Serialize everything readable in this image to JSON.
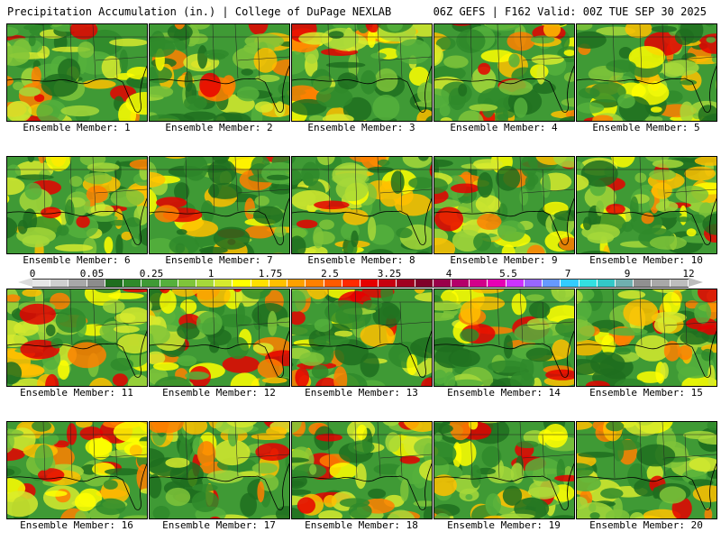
{
  "header": {
    "title": "Precipitation Accumulation (in.) | College of DuPage NEXLAB",
    "run_info": "06Z GEFS | F162 Valid: 00Z TUE SEP 30 2025"
  },
  "members": [
    {
      "label": "Ensemble Member: 1"
    },
    {
      "label": "Ensemble Member: 2"
    },
    {
      "label": "Ensemble Member: 3"
    },
    {
      "label": "Ensemble Member: 4"
    },
    {
      "label": "Ensemble Member: 5"
    },
    {
      "label": "Ensemble Member: 6"
    },
    {
      "label": "Ensemble Member: 7"
    },
    {
      "label": "Ensemble Member: 8"
    },
    {
      "label": "Ensemble Member: 9"
    },
    {
      "label": "Ensemble Member: 10"
    },
    {
      "label": "Ensemble Member: 11"
    },
    {
      "label": "Ensemble Member: 12"
    },
    {
      "label": "Ensemble Member: 13"
    },
    {
      "label": "Ensemble Member: 14"
    },
    {
      "label": "Ensemble Member: 15"
    },
    {
      "label": "Ensemble Member: 16"
    },
    {
      "label": "Ensemble Member: 17"
    },
    {
      "label": "Ensemble Member: 18"
    },
    {
      "label": "Ensemble Member: 19"
    },
    {
      "label": "Ensemble Member: 20"
    }
  ],
  "colorbar": {
    "ticks": [
      "0",
      "0.05",
      "0.25",
      "1",
      "1.75",
      "2.5",
      "3.25",
      "4",
      "5.5",
      "7",
      "9",
      "12"
    ],
    "colors": [
      "#e6e6e6",
      "#cfcfcf",
      "#a8a8a8",
      "#8c8c8c",
      "#1f6e1f",
      "#2f8a2a",
      "#3f9a35",
      "#55b03c",
      "#7fc43a",
      "#a6d83a",
      "#d6ea2e",
      "#ffff00",
      "#ffe000",
      "#ffc000",
      "#ffa000",
      "#ff8000",
      "#ff5a00",
      "#ff2a00",
      "#e60000",
      "#c80010",
      "#a00020",
      "#80002a",
      "#9a004a",
      "#b4006a",
      "#d2008a",
      "#e600b4",
      "#cc33ff",
      "#9966ff",
      "#6699ff",
      "#33ccff",
      "#33e0e0",
      "#33c8c8",
      "#6fb0b0",
      "#909090",
      "#a8a8a8",
      "#bdbdbd"
    ]
  }
}
